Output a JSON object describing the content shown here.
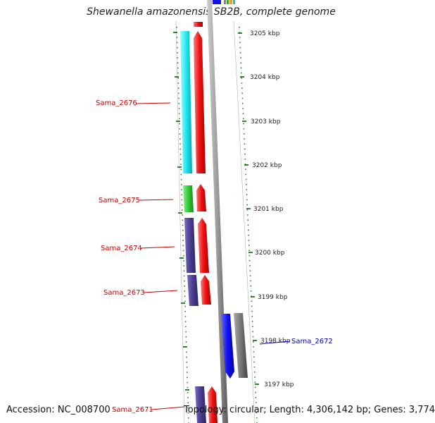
{
  "title": "Shewanella amazonensis SB2B, complete genome",
  "footer": {
    "accession": "Accession: NC_008700",
    "summary": "Topology: circular; Length: 4,306,142 bp; Genes: 3,774"
  },
  "scale_labels": [
    "3205 kbp",
    "3204 kbp",
    "3203 kbp",
    "3202 kbp",
    "3201 kbp",
    "3200 kbp",
    "3199 kbp",
    "3198 kbp",
    "3197 kbp"
  ],
  "gene_labels": [
    {
      "text": "Sama_2676",
      "color": "#cc0000"
    },
    {
      "text": "Sama_2675",
      "color": "#cc0000"
    },
    {
      "text": "Sama_2674",
      "color": "#cc0000"
    },
    {
      "text": "Sama_2673",
      "color": "#cc0000"
    },
    {
      "text": "Sama_2672",
      "color": "#0000cc"
    },
    {
      "text": "Sama_2671",
      "color": "#cc0000"
    }
  ],
  "colors": {
    "cds_red": "#ee1111",
    "cog_cyan": "#22e8f0",
    "cog_green": "#33cc33",
    "cog_purple": "#4a3d8f",
    "cds_blue": "#1111ee",
    "cog_gray": "#777777",
    "backbone": "#9a9a9a",
    "dots": "#1f8f1f",
    "ticks": "#1a7a1a"
  }
}
